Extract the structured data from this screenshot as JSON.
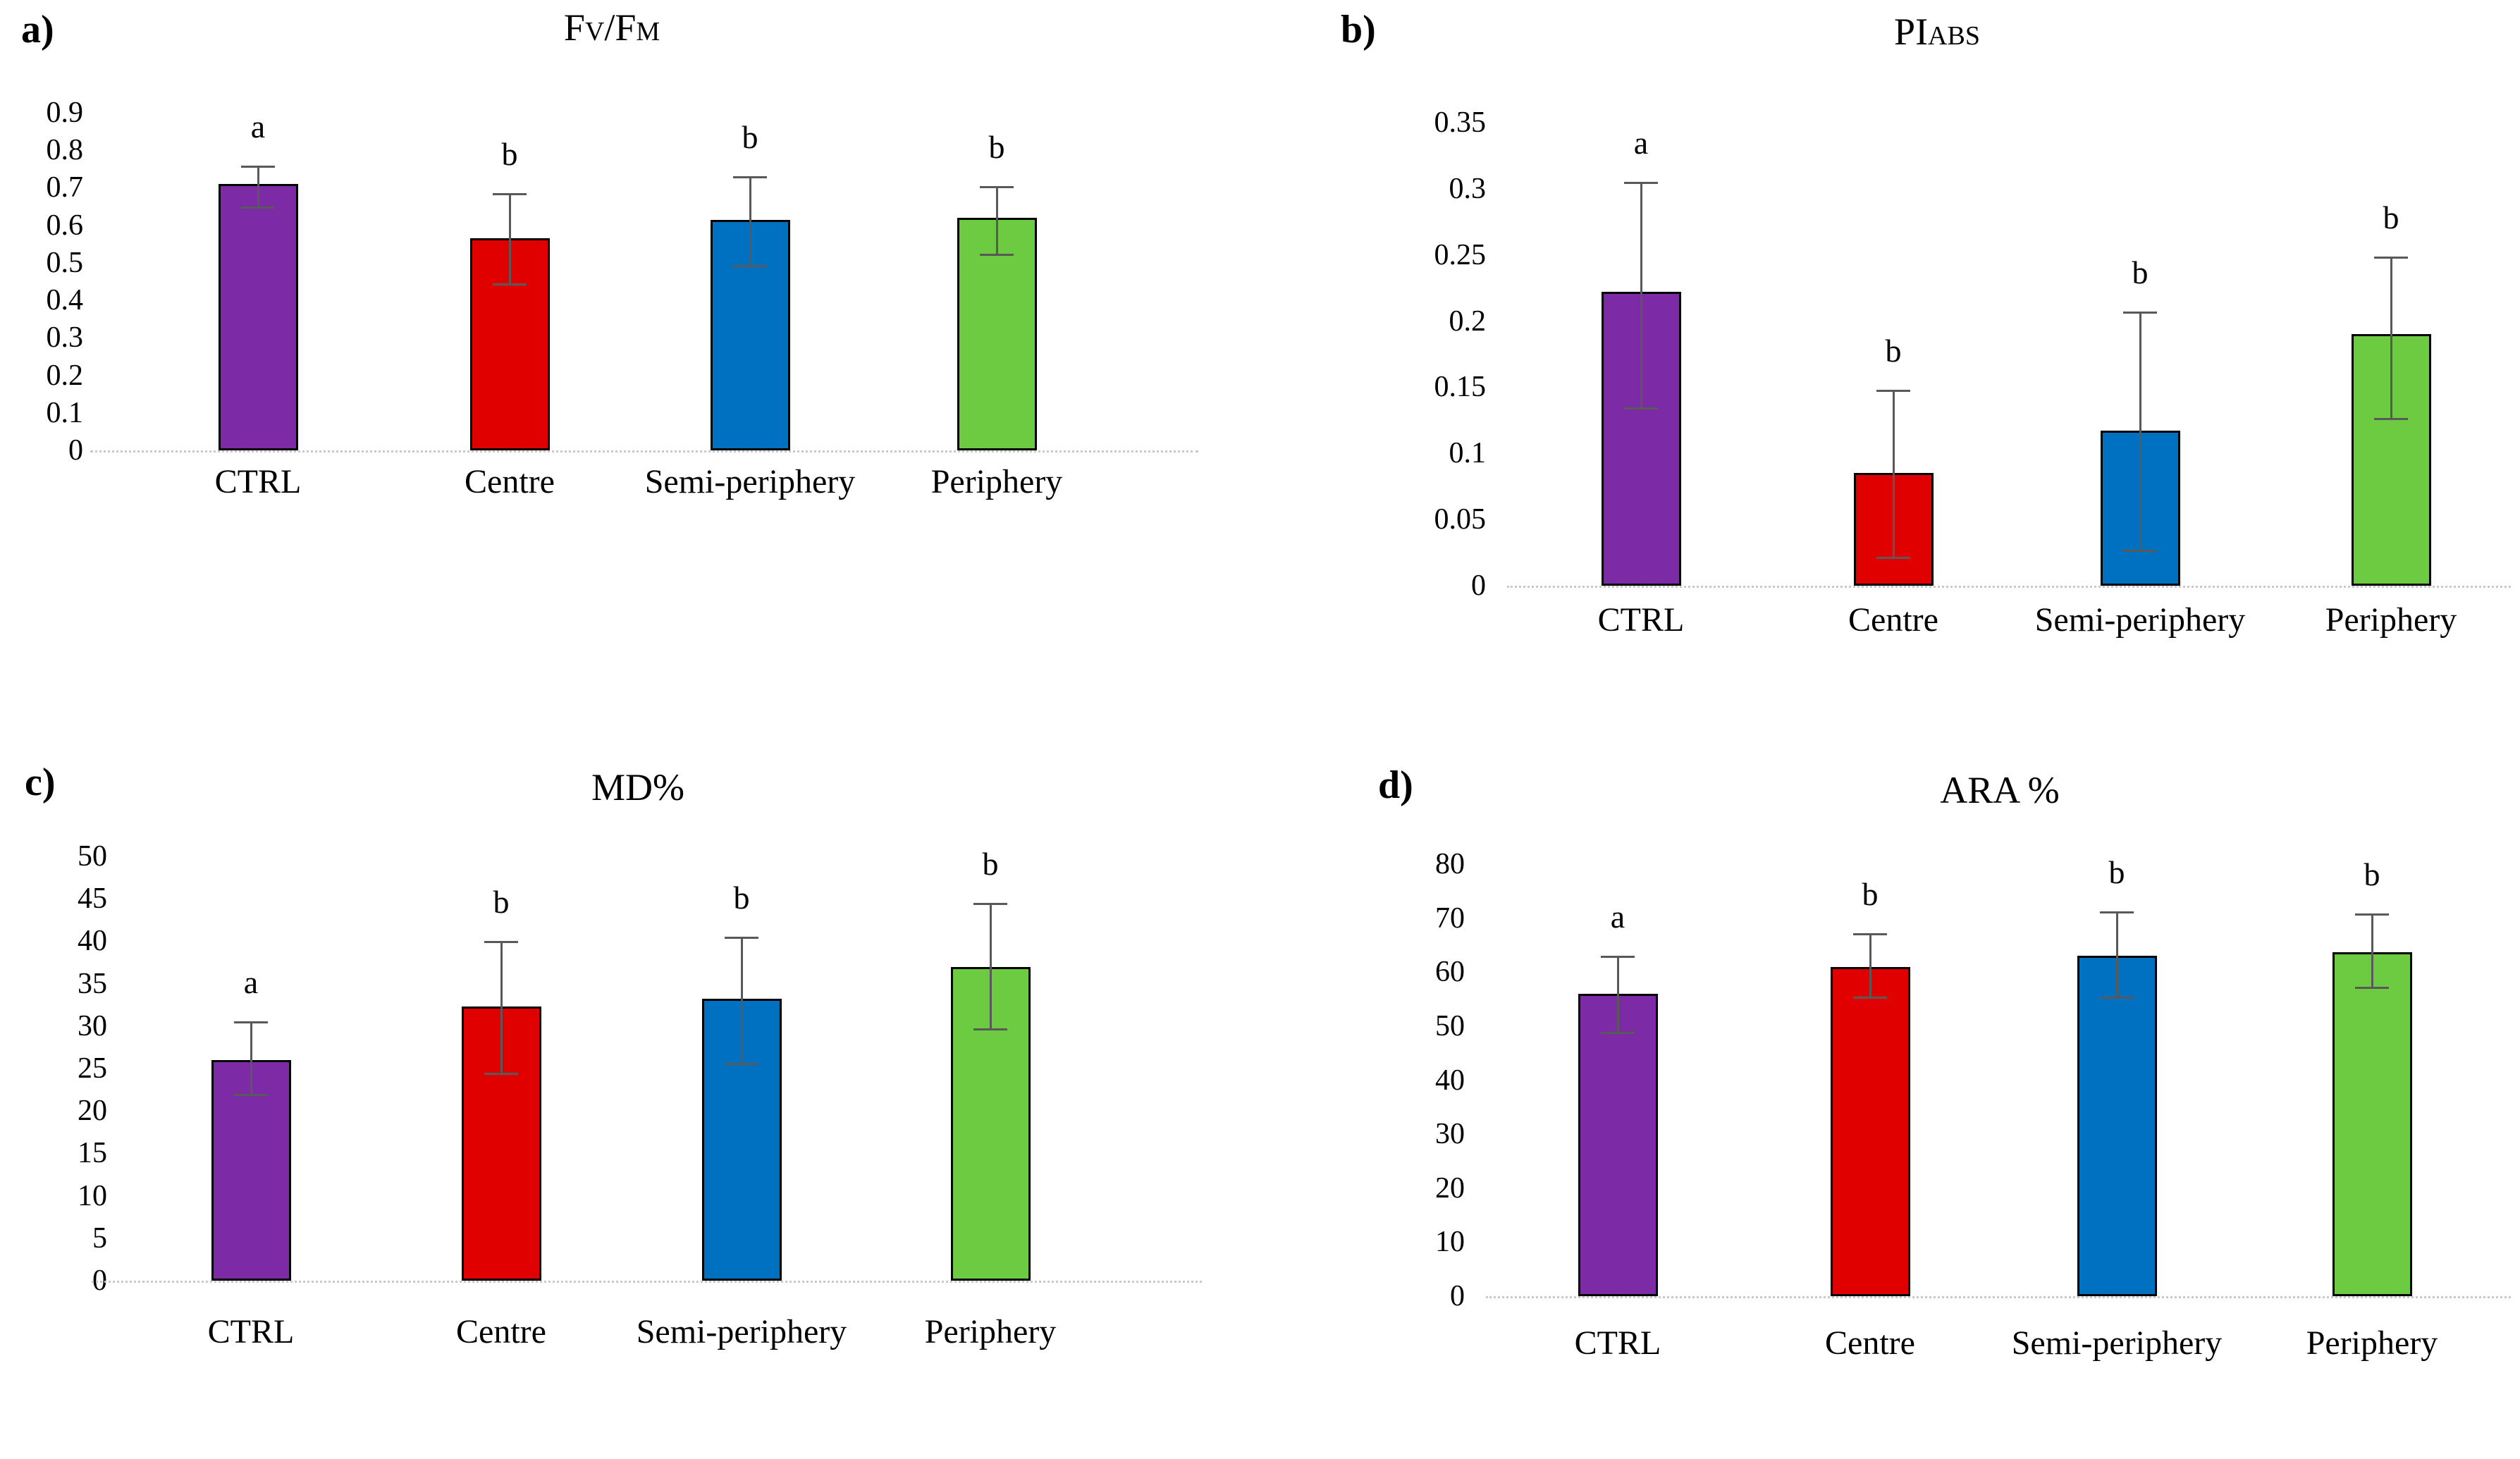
{
  "figure": {
    "background": "#ffffff"
  },
  "colors": {
    "CTRL": "#7D2AA7",
    "Centre": "#E00000",
    "Semi-periphery": "#0070C0",
    "Periphery": "#6CCB41",
    "bar_border": "#000000",
    "error_bar": "#595959",
    "baseline": "#c9c9c9",
    "text": "#000000"
  },
  "categories": [
    "CTRL",
    "Centre",
    "Semi-periphery",
    "Periphery"
  ],
  "chart_data": [
    {
      "type": "bar",
      "panel_label": "a)",
      "title": "Fv/Fm",
      "title_segments": [
        {
          "t": "F",
          "small": false
        },
        {
          "t": "V",
          "small": true
        },
        {
          "t": "/F",
          "small": false
        },
        {
          "t": "M",
          "small": true
        }
      ],
      "categories": [
        "CTRL",
        "Centre",
        "Semi-periphery",
        "Periphery"
      ],
      "values": [
        0.71,
        0.565,
        0.615,
        0.62
      ],
      "error_low": [
        0.65,
        0.445,
        0.495,
        0.525
      ],
      "error_high": [
        0.76,
        0.685,
        0.73,
        0.705
      ],
      "sig_letters": [
        "a",
        "b",
        "b",
        "b"
      ],
      "xlabel": "",
      "ylabel": "",
      "ylim": [
        0,
        0.9
      ],
      "ytick_values": [
        0.9,
        0.8,
        0.7,
        0.6,
        0.5,
        0.4,
        0.3,
        0.2,
        0.1,
        0
      ],
      "yticks": [
        "0.9",
        "0.8",
        "0.7",
        "0.6",
        "0.5",
        "0.4",
        "0.3",
        "0.2",
        "0.1",
        "0"
      ],
      "grid": false,
      "legend": null
    },
    {
      "type": "bar",
      "panel_label": "b)",
      "title": "PIabs",
      "title_segments": [
        {
          "t": "PI",
          "small": false
        },
        {
          "t": "ABS",
          "small": true
        }
      ],
      "categories": [
        "CTRL",
        "Centre",
        "Semi-periphery",
        "Periphery"
      ],
      "values": [
        0.222,
        0.085,
        0.117,
        0.19
      ],
      "error_low": [
        0.135,
        0.022,
        0.027,
        0.127
      ],
      "error_high": [
        0.305,
        0.148,
        0.207,
        0.249
      ],
      "sig_letters": [
        "a",
        "b",
        "b",
        "b"
      ],
      "xlabel": "",
      "ylabel": "",
      "ylim": [
        0,
        0.35
      ],
      "ytick_values": [
        0.35,
        0.3,
        0.25,
        0.2,
        0.15,
        0.1,
        0.05,
        0
      ],
      "yticks": [
        "0.35",
        "0.3",
        "0.25",
        "0.2",
        "0.15",
        "0.1",
        "0.05",
        "0"
      ],
      "grid": false,
      "legend": null
    },
    {
      "type": "bar",
      "panel_label": "c)",
      "title": "MD%",
      "title_segments": [
        {
          "t": "MD%",
          "small": false
        }
      ],
      "categories": [
        "CTRL",
        "Centre",
        "Semi-periphery",
        "Periphery"
      ],
      "values": [
        26,
        32.3,
        33.2,
        37
      ],
      "error_low": [
        22,
        24.5,
        25.7,
        29.7
      ],
      "error_high": [
        30.6,
        40,
        40.5,
        44.5
      ],
      "sig_letters": [
        "a",
        "b",
        "b",
        "b"
      ],
      "xlabel": "",
      "ylabel": "",
      "ylim": [
        0,
        50
      ],
      "ytick_values": [
        50,
        45,
        40,
        35,
        30,
        25,
        20,
        15,
        10,
        5,
        0
      ],
      "yticks": [
        "50",
        "45",
        "40",
        "35",
        "30",
        "25",
        "20",
        "15",
        "10",
        "5",
        "0"
      ],
      "grid": false,
      "legend": null
    },
    {
      "type": "bar",
      "panel_label": "d)",
      "title": "ARA %",
      "title_segments": [
        {
          "t": "ARA %",
          "small": false
        }
      ],
      "categories": [
        "CTRL",
        "Centre",
        "Semi-periphery",
        "Periphery"
      ],
      "values": [
        56,
        61,
        63,
        63.7
      ],
      "error_low": [
        49,
        55.4,
        55.5,
        57.3
      ],
      "error_high": [
        63,
        67.2,
        71.3,
        70.8
      ],
      "sig_letters": [
        "a",
        "b",
        "b",
        "b"
      ],
      "xlabel": "",
      "ylabel": "",
      "ylim": [
        0,
        80
      ],
      "ytick_values": [
        80,
        70,
        60,
        50,
        40,
        30,
        20,
        10,
        0
      ],
      "yticks": [
        "80",
        "70",
        "60",
        "50",
        "40",
        "30",
        "20",
        "10",
        "0"
      ],
      "grid": false,
      "legend": null
    }
  ]
}
